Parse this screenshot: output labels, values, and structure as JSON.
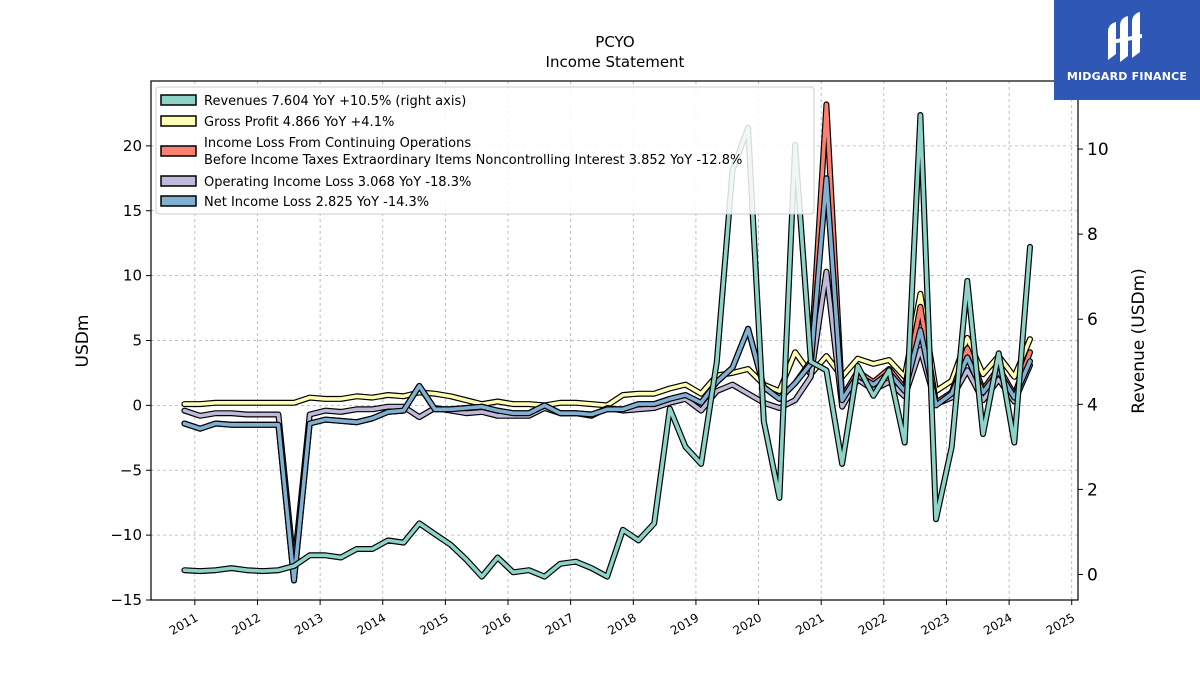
{
  "chart_data": {
    "type": "line",
    "title": "PCYO",
    "subtitle": "Income Statement",
    "ylabel": "USDm",
    "ylabel_right": "Revenue (USDm)",
    "ylim": [
      -15,
      25
    ],
    "ylim_right": [
      -0.6,
      11.6
    ],
    "yticks": [
      "−15",
      "−10",
      "−5",
      "0",
      "5",
      "10",
      "15",
      "20"
    ],
    "yticks_right": [
      "0",
      "2",
      "4",
      "6",
      "8",
      "10"
    ],
    "xticks": [
      "2011",
      "2012",
      "2013",
      "2014",
      "2015",
      "2016",
      "2017",
      "2018",
      "2019",
      "2020",
      "2021",
      "2022",
      "2023",
      "2024",
      "2025"
    ],
    "x": [
      "2010-11",
      "2011-02",
      "2011-05",
      "2011-08",
      "2011-11",
      "2012-02",
      "2012-05",
      "2012-08",
      "2012-11",
      "2013-02",
      "2013-05",
      "2013-08",
      "2013-11",
      "2014-02",
      "2014-05",
      "2014-08",
      "2014-11",
      "2015-02",
      "2015-05",
      "2015-08",
      "2015-11",
      "2016-02",
      "2016-05",
      "2016-08",
      "2016-11",
      "2017-02",
      "2017-05",
      "2017-08",
      "2017-11",
      "2018-02",
      "2018-05",
      "2018-08",
      "2018-11",
      "2019-02",
      "2019-05",
      "2019-08",
      "2019-11",
      "2020-02",
      "2020-05",
      "2020-08",
      "2020-11",
      "2021-02",
      "2021-05",
      "2021-08",
      "2021-11",
      "2022-02",
      "2022-05",
      "2022-08",
      "2022-11",
      "2023-02",
      "2023-05",
      "2023-08",
      "2023-11",
      "2024-02",
      "2024-05"
    ],
    "grid": true,
    "legend_position": "top-left",
    "series": [
      {
        "name": "Revenues  7.604 YoY +10.5% (right axis)",
        "color": "#8dd3c7",
        "axis": "right",
        "values": [
          0.1,
          0.08,
          0.1,
          0.15,
          0.1,
          0.08,
          0.1,
          0.2,
          0.45,
          0.45,
          0.4,
          0.6,
          0.6,
          0.8,
          0.75,
          1.2,
          0.95,
          0.7,
          0.35,
          -0.05,
          0.4,
          0.05,
          0.1,
          -0.05,
          0.25,
          0.3,
          0.15,
          -0.05,
          1.05,
          0.8,
          1.2,
          3.9,
          3.0,
          2.6,
          5.0,
          9.5,
          10.5,
          3.6,
          1.8,
          10.1,
          5.0,
          4.8,
          2.6,
          4.9,
          4.2,
          4.8,
          3.1,
          10.8,
          1.3,
          3.0,
          6.9,
          3.3,
          5.2,
          3.1,
          7.7
        ]
      },
      {
        "name": "Gross Profit  4.866 YoY +4.1%",
        "color": "#ffffb3",
        "axis": "left",
        "values": [
          0.1,
          0.1,
          0.2,
          0.2,
          0.2,
          0.2,
          0.2,
          0.2,
          0.6,
          0.5,
          0.5,
          0.7,
          0.6,
          0.8,
          0.7,
          1.0,
          0.9,
          0.7,
          0.4,
          0.1,
          0.3,
          0.1,
          0.1,
          0.0,
          0.2,
          0.2,
          0.1,
          0.0,
          0.8,
          0.9,
          0.9,
          1.3,
          1.6,
          0.9,
          2.3,
          2.5,
          2.8,
          1.6,
          1.1,
          4.1,
          2.4,
          3.8,
          2.2,
          3.6,
          3.2,
          3.5,
          2.2,
          8.6,
          1.1,
          1.9,
          5.2,
          2.4,
          3.8,
          2.2,
          5.1
        ]
      },
      {
        "name": "Income Loss From Continuing Operations\nBefore Income Taxes Extraordinary Items Noncontrolling Interest  3.852 YoY -12.8%",
        "color": "#fb8072",
        "axis": "left",
        "values": [
          -1.4,
          -1.8,
          -1.4,
          -1.5,
          -1.5,
          -1.5,
          -1.5,
          -13.5,
          -1.4,
          -1.1,
          -1.2,
          -1.3,
          -1.0,
          -0.5,
          -0.4,
          1.5,
          -0.3,
          -0.3,
          -0.2,
          -0.1,
          -0.4,
          -0.6,
          -0.6,
          0.0,
          -0.6,
          -0.6,
          -0.7,
          -0.3,
          -0.3,
          0.1,
          0.1,
          0.5,
          0.8,
          0.2,
          1.8,
          2.9,
          5.9,
          1.4,
          0.5,
          1.7,
          3.4,
          23.2,
          0.6,
          2.6,
          1.8,
          2.8,
          1.3,
          7.6,
          0.2,
          1.0,
          4.4,
          1.2,
          2.9,
          0.8,
          4.1
        ]
      },
      {
        "name": "Operating Income Loss  3.068 YoY -18.3%",
        "color": "#bebada",
        "axis": "left",
        "values": [
          -0.4,
          -0.8,
          -0.6,
          -0.6,
          -0.7,
          -0.7,
          -0.7,
          -12.5,
          -0.7,
          -0.4,
          -0.5,
          -0.3,
          -0.3,
          -0.1,
          -0.1,
          -0.9,
          -0.2,
          -0.4,
          -0.6,
          -0.5,
          -0.8,
          -0.8,
          -0.8,
          -0.2,
          -0.6,
          -0.6,
          -0.8,
          -0.2,
          -0.4,
          -0.3,
          -0.2,
          0.2,
          0.5,
          -0.4,
          1.1,
          1.6,
          0.9,
          0.2,
          -0.2,
          0.4,
          2.2,
          10.3,
          -0.1,
          2.0,
          1.2,
          1.8,
          0.7,
          4.3,
          0.1,
          0.6,
          2.7,
          0.4,
          2.0,
          0.3,
          3.1
        ]
      },
      {
        "name": "Net Income Loss  2.825 YoY -14.3%",
        "color": "#80b1d3",
        "axis": "left",
        "values": [
          -1.4,
          -1.8,
          -1.4,
          -1.5,
          -1.5,
          -1.5,
          -1.5,
          -13.5,
          -1.4,
          -1.1,
          -1.2,
          -1.3,
          -1.0,
          -0.5,
          -0.4,
          1.5,
          -0.3,
          -0.3,
          -0.2,
          -0.1,
          -0.4,
          -0.6,
          -0.6,
          0.0,
          -0.6,
          -0.6,
          -0.7,
          -0.3,
          -0.3,
          0.1,
          0.1,
          0.5,
          0.8,
          0.2,
          1.8,
          2.9,
          5.9,
          1.4,
          0.5,
          1.7,
          3.2,
          17.5,
          0.4,
          2.3,
          1.6,
          2.5,
          1.1,
          5.8,
          0.0,
          0.9,
          3.7,
          1.0,
          2.6,
          0.6,
          3.4
        ]
      }
    ]
  },
  "branding": {
    "logo_text": "MIDGARD FINANCE",
    "background": "#2f57b5"
  }
}
